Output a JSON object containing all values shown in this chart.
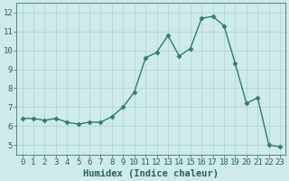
{
  "x": [
    0,
    1,
    2,
    3,
    4,
    5,
    6,
    7,
    8,
    9,
    10,
    11,
    12,
    13,
    14,
    15,
    16,
    17,
    18,
    19,
    20,
    21,
    22,
    23
  ],
  "y": [
    6.4,
    6.4,
    6.3,
    6.4,
    6.2,
    6.1,
    6.2,
    6.2,
    6.5,
    7.0,
    7.8,
    9.6,
    9.9,
    10.8,
    9.7,
    10.1,
    11.7,
    11.8,
    11.3,
    9.3,
    7.2,
    7.5,
    5.0,
    4.9
  ],
  "line_color": "#2e7d6e",
  "marker": "D",
  "marker_size": 2.5,
  "bg_color": "#ceeaea",
  "grid_color": "#aad4d4",
  "xlabel": "Humidex (Indice chaleur)",
  "xlim": [
    -0.5,
    23.5
  ],
  "ylim": [
    4.5,
    12.5
  ],
  "yticks": [
    5,
    6,
    7,
    8,
    9,
    10,
    11,
    12
  ],
  "xticks": [
    0,
    1,
    2,
    3,
    4,
    5,
    6,
    7,
    8,
    9,
    10,
    11,
    12,
    13,
    14,
    15,
    16,
    17,
    18,
    19,
    20,
    21,
    22,
    23
  ],
  "tick_fontsize": 6.5,
  "xlabel_fontsize": 7.5,
  "linewidth": 1.0
}
